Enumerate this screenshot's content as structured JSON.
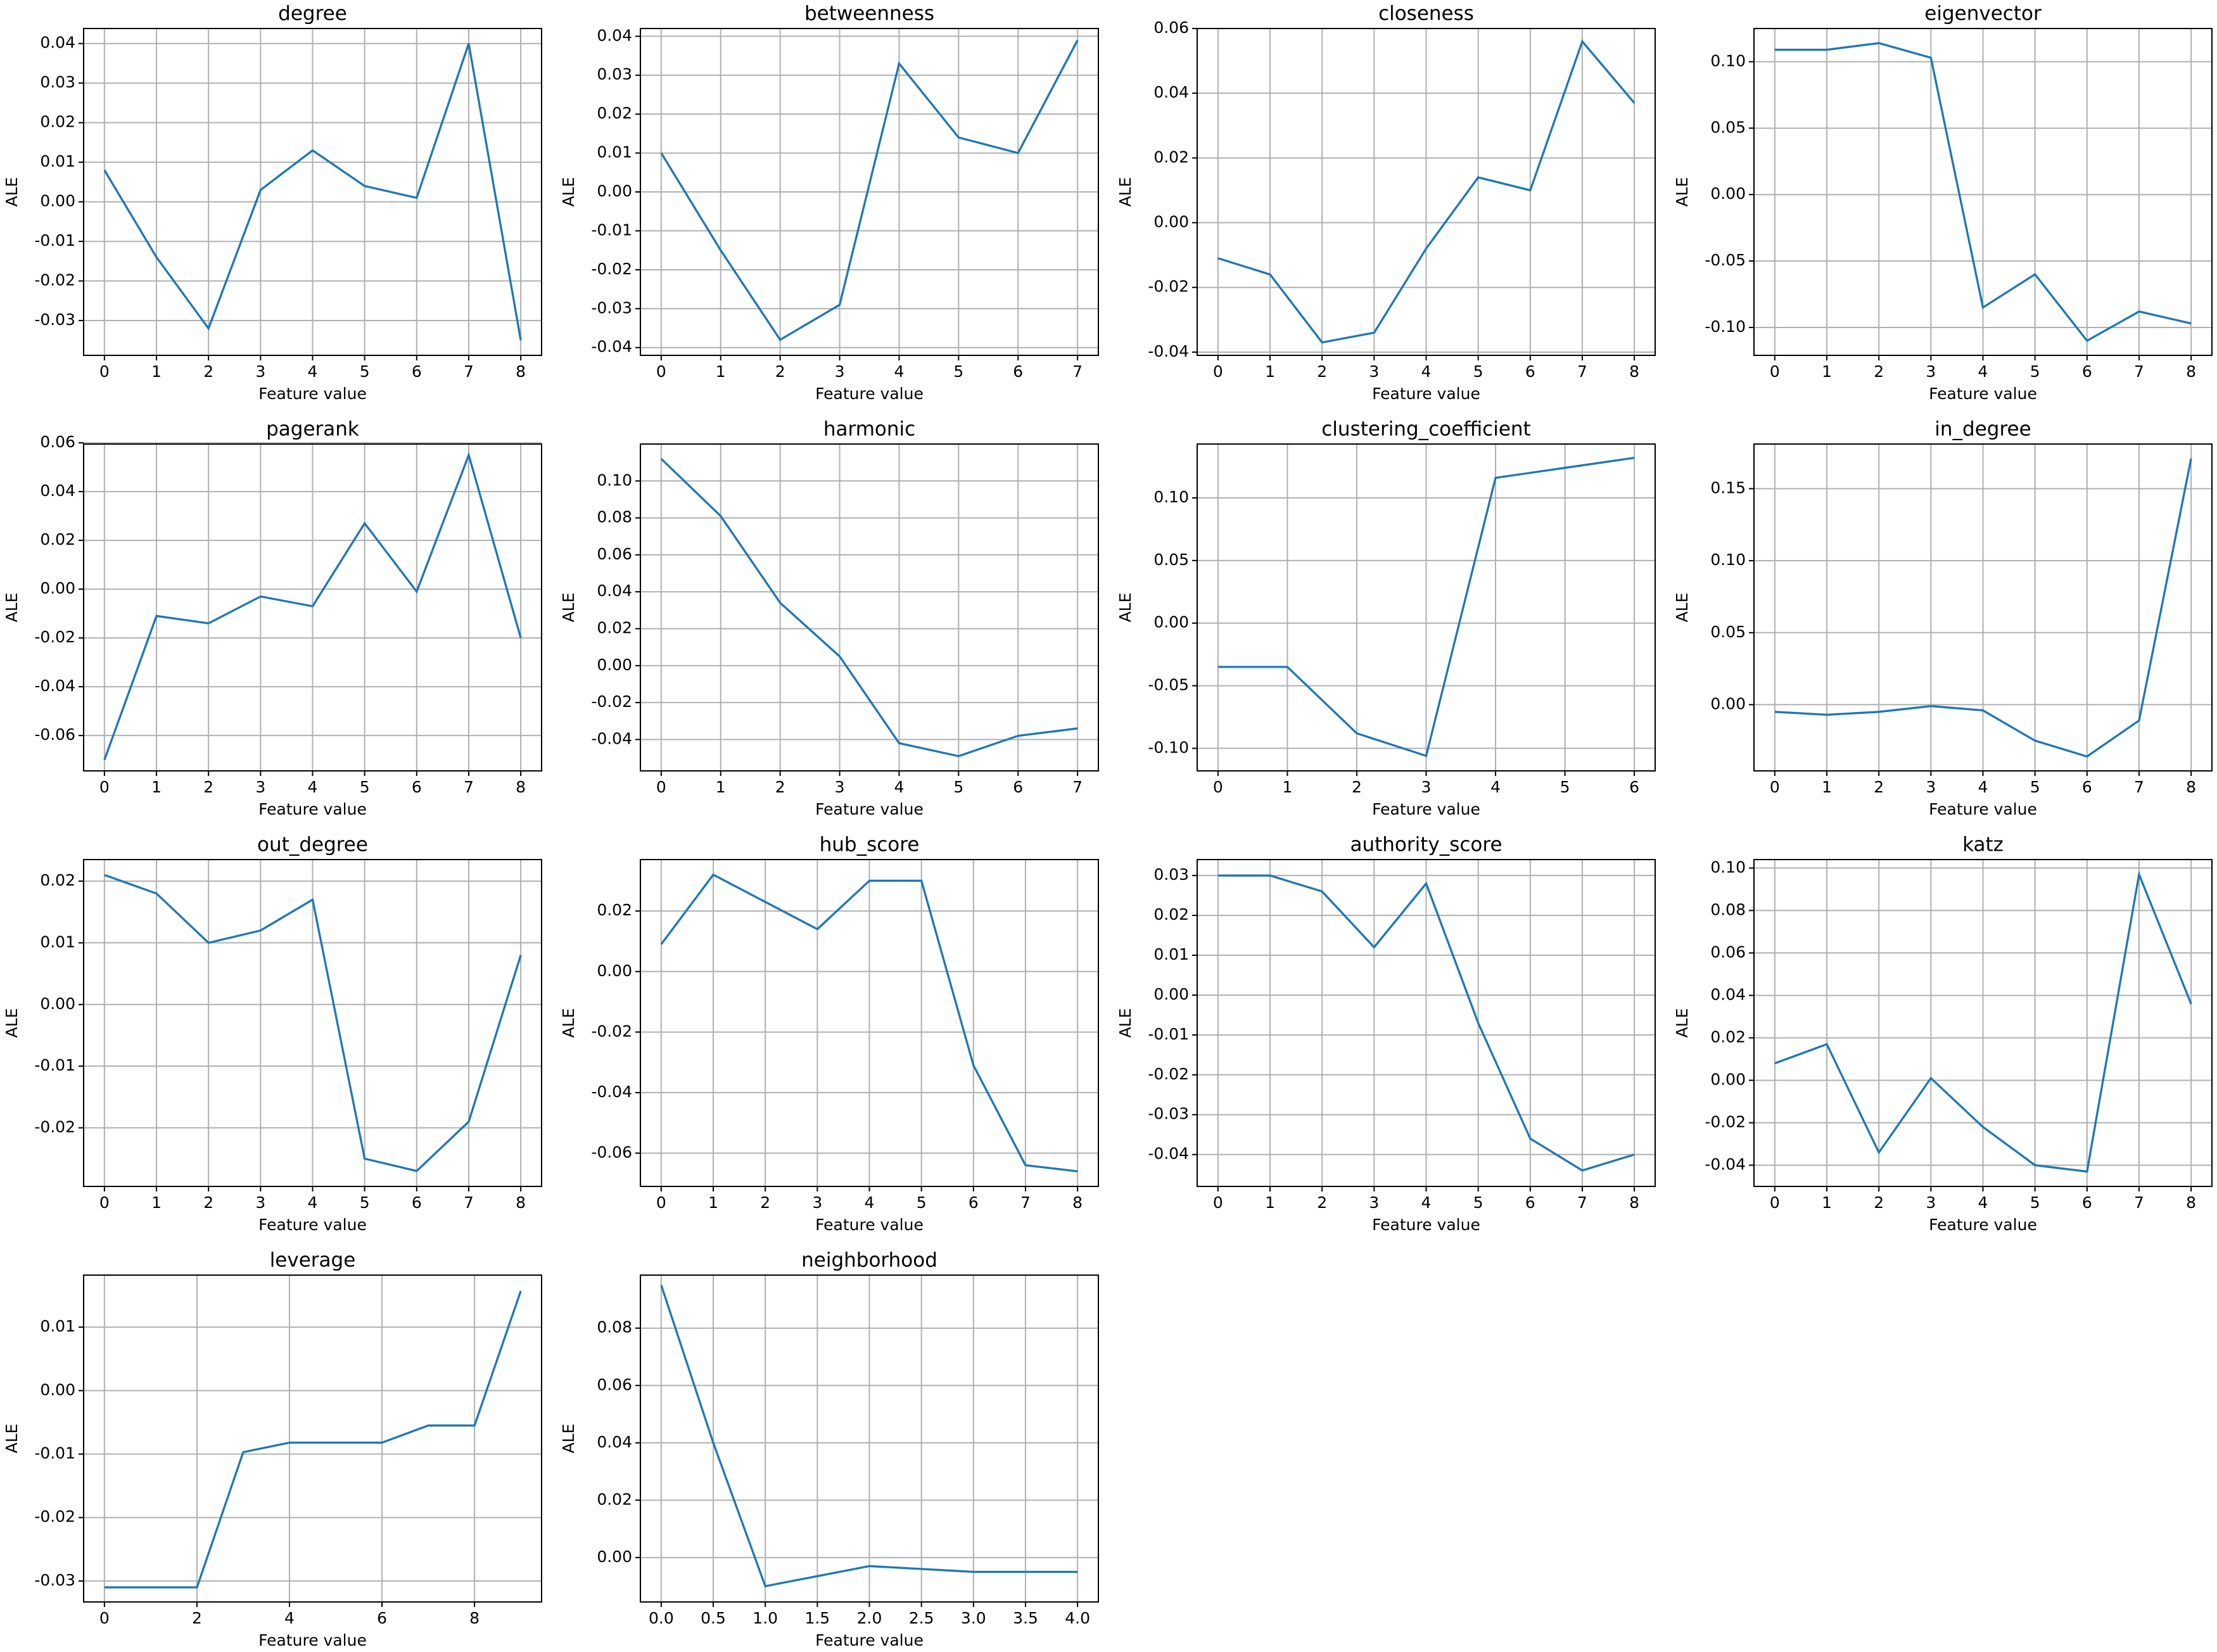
{
  "chart_data": [
    {
      "type": "line",
      "title": "degree",
      "x_label": "Feature value",
      "y_label": "ALE",
      "grid": true,
      "x": [
        0,
        1,
        2,
        3,
        4,
        5,
        6,
        7,
        8
      ],
      "xlim": [
        -0.4,
        8.4
      ],
      "xticks": [
        0,
        1,
        2,
        3,
        4,
        5,
        6,
        7,
        8
      ],
      "ylim": [
        -0.0388,
        0.0438
      ],
      "yticks": [
        -0.03,
        -0.02,
        -0.01,
        {
          "value": 0,
          "label": "0.00"
        },
        0.01,
        0.02,
        0.03,
        0.04
      ],
      "series": [
        {
          "color": "#1f77b4",
          "values": [
            0.008,
            -0.014,
            -0.032,
            0.003,
            0.013,
            0.004,
            0.001,
            0.04,
            -0.035
          ]
        }
      ]
    },
    {
      "type": "line",
      "title": "betweenness",
      "x_label": "Feature value",
      "y_label": "ALE",
      "grid": true,
      "x": [
        0,
        1,
        2,
        3,
        4,
        5,
        6,
        7
      ],
      "xlim": [
        -0.35,
        7.35
      ],
      "xticks": [
        0,
        1,
        2,
        3,
        4,
        5,
        6,
        7
      ],
      "ylim": [
        -0.042,
        0.042
      ],
      "yticks": [
        -0.04,
        -0.03,
        -0.02,
        -0.01,
        {
          "value": 0,
          "label": "0.00"
        },
        0.01,
        0.02,
        0.03,
        0.04
      ],
      "series": [
        {
          "color": "#1f77b4",
          "values": [
            0.01,
            -0.015,
            -0.038,
            -0.029,
            0.033,
            0.014,
            0.01,
            0.039
          ]
        }
      ]
    },
    {
      "type": "line",
      "title": "closeness",
      "x_label": "Feature value",
      "y_label": "ALE",
      "grid": true,
      "x": [
        0,
        1,
        2,
        3,
        4,
        5,
        6,
        7,
        8
      ],
      "xlim": [
        -0.4,
        8.4
      ],
      "xticks": [
        0,
        1,
        2,
        3,
        4,
        5,
        6,
        7,
        8
      ],
      "ylim": [
        -0.041,
        0.06
      ],
      "yticks": [
        -0.04,
        -0.02,
        {
          "value": 0,
          "label": "0.00"
        },
        0.02,
        0.04,
        0.06
      ],
      "series": [
        {
          "color": "#1f77b4",
          "values": [
            -0.011,
            -0.016,
            -0.037,
            -0.034,
            -0.008,
            0.014,
            0.01,
            0.056,
            0.037
          ]
        }
      ]
    },
    {
      "type": "line",
      "title": "eigenvector",
      "x_label": "Feature value",
      "y_label": "ALE",
      "grid": true,
      "x": [
        0,
        1,
        2,
        3,
        4,
        5,
        6,
        7,
        8
      ],
      "xlim": [
        -0.4,
        8.4
      ],
      "xticks": [
        0,
        1,
        2,
        3,
        4,
        5,
        6,
        7,
        8
      ],
      "ylim": [
        -0.121,
        0.125
      ],
      "yticks": [
        {
          "value": -0.1,
          "label": "-0.10"
        },
        -0.05,
        {
          "value": 0,
          "label": "0.00"
        },
        0.05,
        {
          "value": 0.1,
          "label": "0.10"
        }
      ],
      "series": [
        {
          "color": "#1f77b4",
          "values": [
            0.109,
            0.109,
            0.114,
            0.103,
            -0.085,
            -0.06,
            -0.11,
            -0.088,
            -0.097
          ]
        }
      ]
    },
    {
      "type": "line",
      "title": "pagerank",
      "x_label": "Feature value",
      "y_label": "ALE",
      "grid": true,
      "x": [
        0,
        1,
        2,
        3,
        4,
        5,
        6,
        7,
        8
      ],
      "xlim": [
        -0.4,
        8.4
      ],
      "xticks": [
        0,
        1,
        2,
        3,
        4,
        5,
        6,
        7,
        8
      ],
      "ylim": [
        -0.0745,
        0.0595
      ],
      "yticks": [
        -0.06,
        -0.04,
        -0.02,
        {
          "value": 0,
          "label": "0.00"
        },
        0.02,
        0.04,
        0.06
      ],
      "series": [
        {
          "color": "#1f77b4",
          "values": [
            -0.07,
            -0.011,
            -0.014,
            -0.003,
            -0.007,
            0.027,
            -0.001,
            0.055,
            -0.02
          ]
        }
      ]
    },
    {
      "type": "line",
      "title": "harmonic",
      "x_label": "Feature value",
      "y_label": "ALE",
      "grid": true,
      "x": [
        0,
        1,
        2,
        3,
        4,
        5,
        6,
        7
      ],
      "xlim": [
        -0.35,
        7.35
      ],
      "xticks": [
        0,
        1,
        2,
        3,
        4,
        5,
        6,
        7
      ],
      "ylim": [
        -0.057,
        0.12
      ],
      "yticks": [
        -0.04,
        -0.02,
        {
          "value": 0,
          "label": "0.00"
        },
        0.02,
        0.04,
        0.06,
        0.08,
        {
          "value": 0.1,
          "label": "0.10"
        }
      ],
      "series": [
        {
          "color": "#1f77b4",
          "values": [
            0.112,
            0.081,
            0.034,
            0.005,
            -0.042,
            -0.049,
            -0.038,
            -0.034
          ]
        }
      ]
    },
    {
      "type": "line",
      "title": "clustering_coefficient",
      "x_label": "Feature value",
      "y_label": "ALE",
      "grid": true,
      "x": [
        0,
        1,
        2,
        3,
        4,
        5,
        6
      ],
      "xlim": [
        -0.3,
        6.3
      ],
      "xticks": [
        0,
        1,
        2,
        3,
        4,
        5,
        6
      ],
      "ylim": [
        -0.118,
        0.143
      ],
      "yticks": [
        {
          "value": -0.1,
          "label": "-0.10"
        },
        -0.05,
        {
          "value": 0,
          "label": "0.00"
        },
        0.05,
        {
          "value": 0.1,
          "label": "0.10"
        }
      ],
      "series": [
        {
          "color": "#1f77b4",
          "values": [
            -0.035,
            -0.035,
            -0.088,
            -0.106,
            0.116,
            0.124,
            0.132
          ]
        }
      ]
    },
    {
      "type": "line",
      "title": "in_degree",
      "x_label": "Feature value",
      "y_label": "ALE",
      "grid": true,
      "x": [
        0,
        1,
        2,
        3,
        4,
        5,
        6,
        7,
        8
      ],
      "xlim": [
        -0.4,
        8.4
      ],
      "xticks": [
        0,
        1,
        2,
        3,
        4,
        5,
        6,
        7,
        8
      ],
      "ylim": [
        -0.046,
        0.181
      ],
      "yticks": [
        {
          "value": 0,
          "label": "0.00"
        },
        0.05,
        {
          "value": 0.1,
          "label": "0.10"
        },
        0.15
      ],
      "series": [
        {
          "color": "#1f77b4",
          "values": [
            -0.005,
            -0.007,
            -0.005,
            -0.001,
            -0.004,
            -0.025,
            -0.036,
            -0.011,
            0.171
          ]
        }
      ]
    },
    {
      "type": "line",
      "title": "out_degree",
      "x_label": "Feature value",
      "y_label": "ALE",
      "grid": true,
      "x": [
        0,
        1,
        2,
        3,
        4,
        5,
        6,
        7,
        8
      ],
      "xlim": [
        -0.4,
        8.4
      ],
      "xticks": [
        0,
        1,
        2,
        3,
        4,
        5,
        6,
        7,
        8
      ],
      "ylim": [
        -0.0295,
        0.0235
      ],
      "yticks": [
        -0.02,
        -0.01,
        {
          "value": 0,
          "label": "0.00"
        },
        0.01,
        0.02
      ],
      "series": [
        {
          "color": "#1f77b4",
          "values": [
            0.021,
            0.018,
            0.01,
            0.012,
            0.017,
            -0.025,
            -0.027,
            -0.019,
            0.008
          ]
        }
      ]
    },
    {
      "type": "line",
      "title": "hub_score",
      "x_label": "Feature value",
      "y_label": "ALE",
      "grid": true,
      "x": [
        0,
        1,
        2,
        3,
        4,
        5,
        6,
        7,
        8
      ],
      "xlim": [
        -0.4,
        8.4
      ],
      "xticks": [
        0,
        1,
        2,
        3,
        4,
        5,
        6,
        7,
        8
      ],
      "ylim": [
        -0.071,
        0.037
      ],
      "yticks": [
        -0.06,
        -0.04,
        -0.02,
        {
          "value": 0,
          "label": "0.00"
        },
        0.02
      ],
      "series": [
        {
          "color": "#1f77b4",
          "values": [
            0.009,
            0.032,
            0.023,
            0.014,
            0.03,
            0.03,
            -0.031,
            -0.064,
            -0.066
          ]
        }
      ]
    },
    {
      "type": "line",
      "title": "authority_score",
      "x_label": "Feature value",
      "y_label": "ALE",
      "grid": true,
      "x": [
        0,
        1,
        2,
        3,
        4,
        5,
        6,
        7,
        8
      ],
      "xlim": [
        -0.4,
        8.4
      ],
      "xticks": [
        0,
        1,
        2,
        3,
        4,
        5,
        6,
        7,
        8
      ],
      "ylim": [
        -0.048,
        0.034
      ],
      "yticks": [
        -0.04,
        -0.03,
        -0.02,
        -0.01,
        {
          "value": 0,
          "label": "0.00"
        },
        0.01,
        0.02,
        0.03
      ],
      "series": [
        {
          "color": "#1f77b4",
          "values": [
            0.03,
            0.03,
            0.026,
            0.012,
            0.028,
            -0.007,
            -0.036,
            -0.044,
            -0.04
          ]
        }
      ]
    },
    {
      "type": "line",
      "title": "katz",
      "x_label": "Feature value",
      "y_label": "ALE",
      "grid": true,
      "x": [
        0,
        1,
        2,
        3,
        4,
        5,
        6,
        7,
        8
      ],
      "xlim": [
        -0.4,
        8.4
      ],
      "xticks": [
        0,
        1,
        2,
        3,
        4,
        5,
        6,
        7,
        8
      ],
      "ylim": [
        -0.05,
        0.104
      ],
      "yticks": [
        -0.04,
        -0.02,
        {
          "value": 0,
          "label": "0.00"
        },
        0.02,
        0.04,
        0.06,
        0.08,
        {
          "value": 0.1,
          "label": "0.10"
        }
      ],
      "series": [
        {
          "color": "#1f77b4",
          "values": [
            0.008,
            0.017,
            -0.034,
            0.001,
            -0.022,
            -0.04,
            -0.043,
            0.097,
            0.036
          ]
        }
      ]
    },
    {
      "type": "line",
      "title": "leverage",
      "x_label": "Feature value",
      "y_label": "ALE",
      "grid": true,
      "x": [
        0,
        1,
        2,
        3,
        4,
        5,
        6,
        7,
        8,
        9
      ],
      "xlim": [
        -0.45,
        9.45
      ],
      "xticks": [
        0,
        2,
        4,
        6,
        8
      ],
      "ylim": [
        -0.0333,
        0.0182
      ],
      "yticks": [
        -0.03,
        -0.02,
        -0.01,
        {
          "value": 0,
          "label": "0.00"
        },
        0.01
      ],
      "series": [
        {
          "color": "#1f77b4",
          "values": [
            -0.031,
            -0.031,
            -0.031,
            -0.0097,
            -0.0082,
            -0.0082,
            -0.0082,
            -0.0055,
            -0.0055,
            0.0157
          ]
        }
      ]
    },
    {
      "type": "line",
      "title": "neighborhood",
      "x_label": "Feature value",
      "y_label": "ALE",
      "grid": true,
      "x": [
        0,
        0.5,
        1,
        2,
        3,
        4
      ],
      "xlim": [
        -0.2,
        4.2
      ],
      "xticks": [
        {
          "value": 0,
          "label": "0.0"
        },
        0.5,
        {
          "value": 1,
          "label": "1.0"
        },
        1.5,
        {
          "value": 2,
          "label": "2.0"
        },
        2.5,
        {
          "value": 3,
          "label": "3.0"
        },
        3.5,
        {
          "value": 4,
          "label": "4.0"
        }
      ],
      "ylim": [
        -0.0155,
        0.0985
      ],
      "yticks": [
        {
          "value": 0,
          "label": "0.00"
        },
        0.02,
        0.04,
        0.06,
        0.08
      ],
      "series": [
        {
          "color": "#1f77b4",
          "values": [
            0.095,
            0.04,
            -0.01,
            -0.003,
            -0.005,
            -0.005
          ]
        }
      ]
    }
  ]
}
